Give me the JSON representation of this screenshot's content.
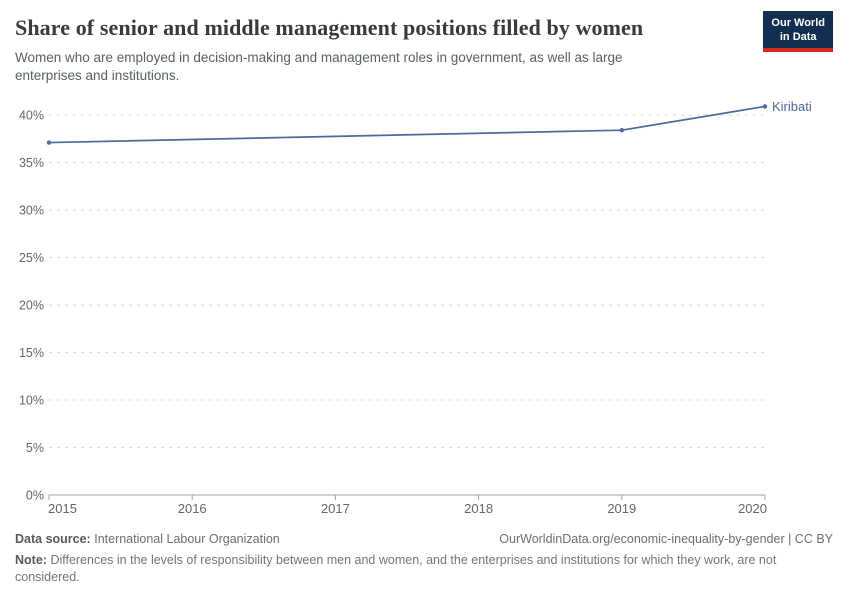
{
  "header": {
    "title": "Share of senior and middle management positions filled by women",
    "subtitle": "Women who are employed in decision-making and management roles in government, as well as large enterprises and institutions.",
    "logo": {
      "line1": "Our World",
      "line2": "in Data"
    }
  },
  "chart_data": {
    "type": "line",
    "title": "Share of senior and middle management positions filled by women",
    "xlabel": "",
    "ylabel": "",
    "xlim": [
      2015,
      2020
    ],
    "ylim": [
      0,
      40
    ],
    "x_ticks": [
      2015,
      2016,
      2017,
      2018,
      2019,
      2020
    ],
    "y_ticks": [
      0,
      5,
      10,
      15,
      20,
      25,
      30,
      35,
      40
    ],
    "y_tick_suffix": "%",
    "grid": "horizontal-dashed",
    "legend_position": "end-of-line-label",
    "series": [
      {
        "name": "Kiribati",
        "color": "#4C6A9C",
        "points": [
          {
            "x": 2015,
            "y": 37.1
          },
          {
            "x": 2019,
            "y": 38.4
          },
          {
            "x": 2020,
            "y": 40.9
          }
        ]
      }
    ],
    "grid_color": "#d9d9d9",
    "axis_color": "#a3a3a3",
    "tick_color": "#666666"
  },
  "footer": {
    "data_source_label": "Data source:",
    "data_source": "International Labour Organization",
    "attribution": "OurWorldinData.org/economic-inequality-by-gender | CC BY",
    "note_label": "Note:",
    "note": "Differences in the levels of responsibility between men and women, and the enterprises and institutions for which they work, are not considered."
  },
  "colors": {
    "brand_navy": "#142e52",
    "brand_red": "#d42b21",
    "accent_line": "#4C6A9C"
  }
}
